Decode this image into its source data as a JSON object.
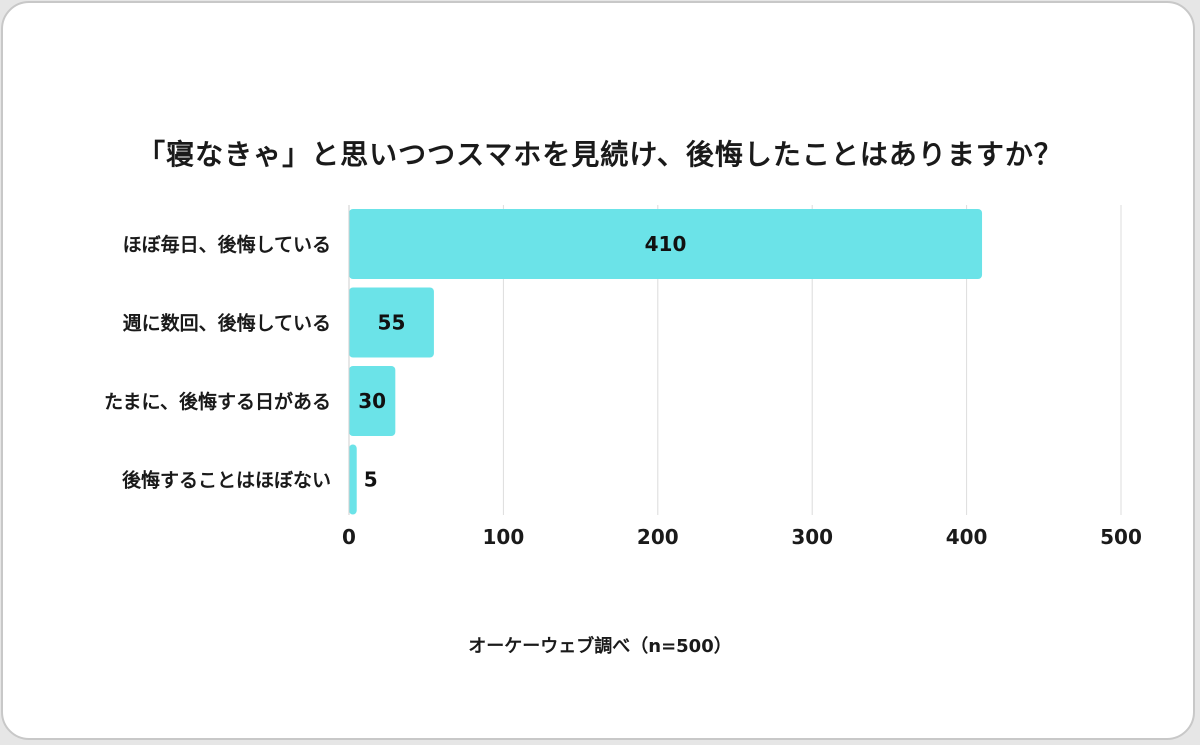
{
  "chart_data": {
    "type": "bar",
    "orientation": "horizontal",
    "title": "「寝なきゃ」と思いつつスマホを見続け、後悔したことはありますか？",
    "categories": [
      "ほぼ毎日、後悔している",
      "週に数回、後悔している",
      "たまに、後悔する日がある",
      "後悔することはほぼない"
    ],
    "values": [
      410,
      55,
      30,
      5
    ],
    "data_labels": [
      "410",
      "55",
      "30",
      "5"
    ],
    "xlim": [
      0,
      500
    ],
    "xticks": [
      0,
      100,
      200,
      300,
      400,
      500
    ],
    "tick_labels": [
      "0",
      "100",
      "200",
      "300",
      "400",
      "500"
    ],
    "grid": true,
    "bar_color": "#6be3e8",
    "gridline_color": "#dcdcdc",
    "source": "オーケーウェブ調べ（n=500）"
  }
}
